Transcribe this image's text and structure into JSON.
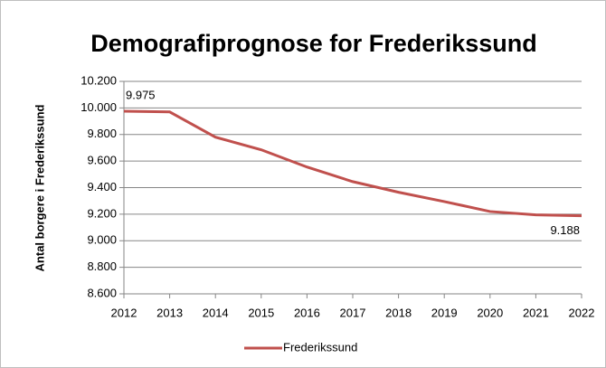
{
  "chart_data": {
    "type": "line",
    "title": "Demografiprognose for Frederikssund",
    "y_label": "Antal borgere i Frederikssund",
    "x": [
      2012,
      2013,
      2014,
      2015,
      2016,
      2017,
      2018,
      2019,
      2020,
      2021,
      2022
    ],
    "series": [
      {
        "name": "Frederikssund",
        "color": "#c0504d",
        "values": [
          9975,
          9970,
          9780,
          9685,
          9555,
          9445,
          9365,
          9295,
          9220,
          9195,
          9188
        ],
        "value_labels": [
          "9.975",
          null,
          null,
          null,
          null,
          null,
          null,
          null,
          null,
          null,
          "9.188"
        ]
      }
    ],
    "xlim": [
      2012,
      2022
    ],
    "xticks": [
      2012,
      2013,
      2014,
      2015,
      2016,
      2017,
      2018,
      2019,
      2020,
      2021,
      2022
    ],
    "ylim": [
      8600,
      10200
    ],
    "yticks": [
      {
        "value": 8600,
        "label": "8.600"
      },
      {
        "value": 8800,
        "label": "8.800"
      },
      {
        "value": 9000,
        "label": "9.000"
      },
      {
        "value": 9200,
        "label": "9.200"
      },
      {
        "value": 9400,
        "label": "9.400"
      },
      {
        "value": 9600,
        "label": "9.600"
      },
      {
        "value": 9800,
        "label": "9.800"
      },
      {
        "value": 10000,
        "label": "10.000"
      },
      {
        "value": 10200,
        "label": "10.200"
      }
    ],
    "grid": true,
    "legend": "bottom"
  }
}
